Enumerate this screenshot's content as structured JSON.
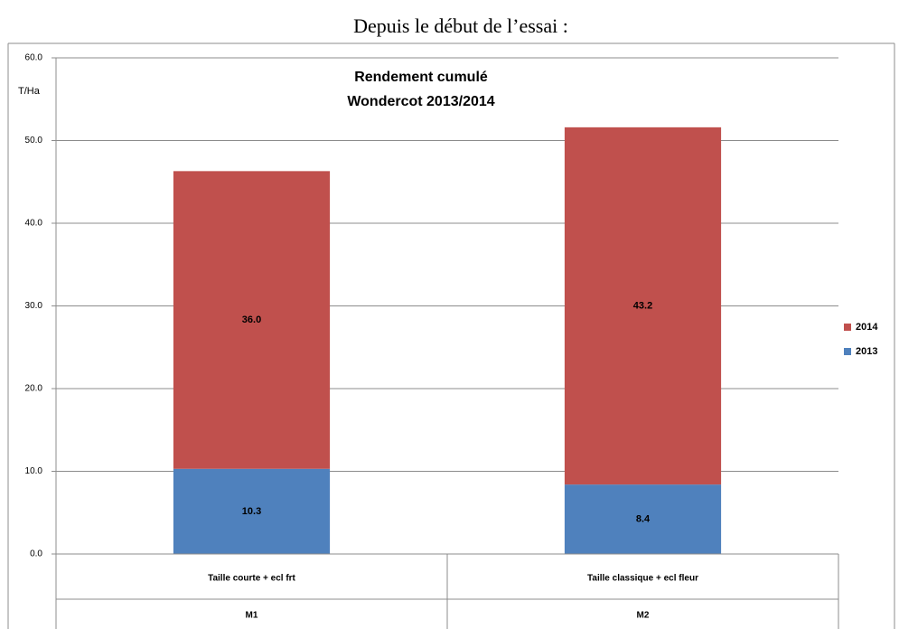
{
  "heading": "Depuis le début de l’essai :",
  "chart_data": {
    "type": "stacked_bar",
    "title": [
      "Rendement cumulé",
      "Wondercot 2013/2014"
    ],
    "y_label": "T/Ha",
    "categories": [
      "Taille courte + ecl frt",
      "Taille classique + ecl fleur"
    ],
    "category_groups": [
      "M1",
      "M2"
    ],
    "series": [
      {
        "name": "2013",
        "color": "#4f81bd",
        "values": [
          10.3,
          8.4
        ],
        "value_labels": [
          "10.3",
          "8.4"
        ]
      },
      {
        "name": "2014",
        "color": "#c0504d",
        "values": [
          36.0,
          43.2
        ],
        "value_labels": [
          "36.0",
          "43.2"
        ]
      }
    ],
    "ylim": [
      0,
      60
    ],
    "yticks": [
      {
        "value": 0,
        "label": "0.0"
      },
      {
        "value": 10,
        "label": "10.0"
      },
      {
        "value": 20,
        "label": "20.0"
      },
      {
        "value": 30,
        "label": "30.0"
      },
      {
        "value": 40,
        "label": "40.0"
      },
      {
        "value": 50,
        "label": "50.0"
      },
      {
        "value": 60,
        "label": "60.0"
      }
    ],
    "grid": true,
    "legend": "right"
  }
}
